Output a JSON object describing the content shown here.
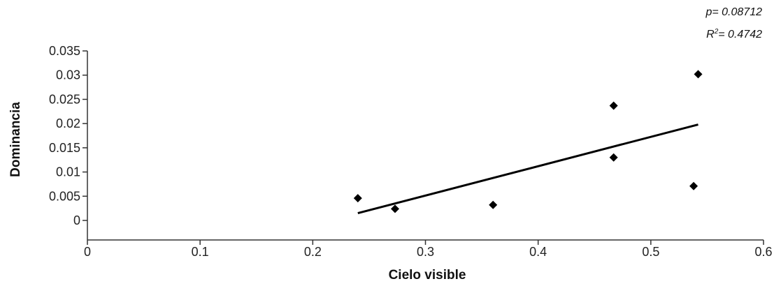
{
  "chart_data": {
    "type": "scatter",
    "xlabel": "Cielo visible",
    "ylabel": "Dominancia",
    "xlim": [
      0,
      0.6
    ],
    "ylim": [
      0,
      0.035
    ],
    "x_ticks": [
      "0",
      "0.1",
      "0.2",
      "0.3",
      "0.4",
      "0.5",
      "0.6"
    ],
    "y_ticks": [
      "0",
      "0.005",
      "0.01",
      "0.015",
      "0.02",
      "0.025",
      "0.03",
      "0.035"
    ],
    "points": [
      {
        "x": 0.24,
        "y": 0.0046
      },
      {
        "x": 0.273,
        "y": 0.0024
      },
      {
        "x": 0.36,
        "y": 0.0032
      },
      {
        "x": 0.467,
        "y": 0.0237
      },
      {
        "x": 0.467,
        "y": 0.013
      },
      {
        "x": 0.538,
        "y": 0.0071
      },
      {
        "x": 0.542,
        "y": 0.0302
      }
    ],
    "trendline": {
      "x": [
        0.24,
        0.542
      ],
      "y": [
        0.0015,
        0.0198
      ]
    },
    "annotations": {
      "p": "p= 0.08712",
      "r2_prefix": "R",
      "r2_sup": "2",
      "r2_value": "= 0.4742"
    },
    "grid": false,
    "legend": "none",
    "marker_color": "#000000",
    "line_color": "#000000"
  }
}
